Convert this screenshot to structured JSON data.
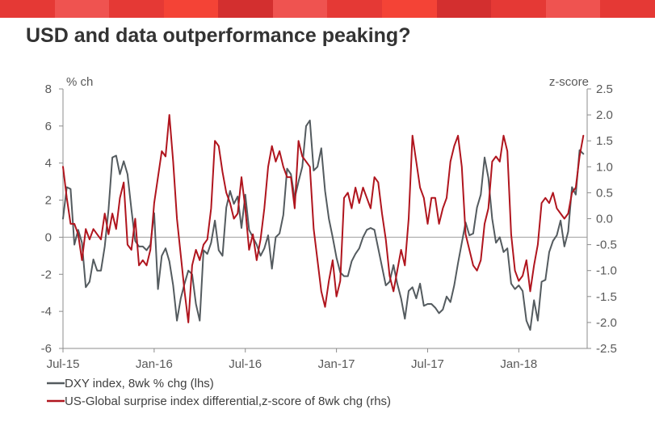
{
  "header": {
    "title": "USD and data outperformance peaking?",
    "stripe_colors": [
      "#e53935",
      "#ef5350",
      "#e53935",
      "#f44336",
      "#d32f2f",
      "#ef5350",
      "#e53935",
      "#f44336",
      "#d32f2f",
      "#e53935",
      "#ef5350",
      "#e53935"
    ]
  },
  "chart_data": {
    "type": "line",
    "title": "USD and data outperformance peaking?",
    "y_left": {
      "unit": "% ch",
      "range": [
        -6,
        8
      ],
      "ticks": [
        "8",
        "6",
        "4",
        "2",
        "0",
        "-2",
        "-4",
        "-6"
      ]
    },
    "y_right": {
      "unit": "z-score",
      "range": [
        -2.5,
        2.5
      ],
      "ticks": [
        "2.5",
        "2.0",
        "1.5",
        "1.0",
        "0.5",
        "0.0",
        "-0.5",
        "-1.0",
        "-1.5",
        "-2.0",
        "-2.5"
      ]
    },
    "x_axis": {
      "range_months": [
        0,
        34.5
      ],
      "tick_labels": [
        "Jul-15",
        "Jan-16",
        "Jul-16",
        "Jan-17",
        "Jul-17",
        "Jan-18"
      ],
      "tick_months": [
        0,
        6,
        12,
        18,
        24,
        30
      ]
    },
    "colors": {
      "dxy": "#545b5f",
      "surprise": "#b0151e",
      "zero_line": "#9e9e9e"
    },
    "series": [
      {
        "name": "DXY index, 8wk % chg (lhs)",
        "axis": "left",
        "x": [
          0,
          0.25,
          0.5,
          0.75,
          1.0,
          1.25,
          1.5,
          1.75,
          2.0,
          2.25,
          2.5,
          2.75,
          3.0,
          3.25,
          3.5,
          3.75,
          4.0,
          4.25,
          4.5,
          4.75,
          5.0,
          5.25,
          5.5,
          5.75,
          6.0,
          6.25,
          6.5,
          6.75,
          7.0,
          7.25,
          7.5,
          7.75,
          8.0,
          8.25,
          8.5,
          8.75,
          9.0,
          9.25,
          9.5,
          9.75,
          10.0,
          10.25,
          10.5,
          10.75,
          11.0,
          11.25,
          11.5,
          11.75,
          12.0,
          12.25,
          12.5,
          12.75,
          13.0,
          13.25,
          13.5,
          13.75,
          14.0,
          14.25,
          14.5,
          14.75,
          15.0,
          15.25,
          15.5,
          15.75,
          16.0,
          16.25,
          16.5,
          16.75,
          17.0,
          17.25,
          17.5,
          17.75,
          18.0,
          18.25,
          18.5,
          18.75,
          19.0,
          19.25,
          19.5,
          19.75,
          20.0,
          20.25,
          20.5,
          20.75,
          21.0,
          21.25,
          21.5,
          21.75,
          22.0,
          22.25,
          22.5,
          22.75,
          23.0,
          23.25,
          23.5,
          23.75,
          24.0,
          24.25,
          24.5,
          24.75,
          25.0,
          25.25,
          25.5,
          25.75,
          26.0,
          26.25,
          26.5,
          26.75,
          27.0,
          27.25,
          27.5,
          27.75,
          28.0,
          28.25,
          28.5,
          28.75,
          29.0,
          29.25,
          29.5,
          29.75,
          30.0,
          30.25,
          30.5,
          30.75,
          31.0,
          31.25,
          31.5,
          31.75,
          32.0,
          32.25,
          32.5,
          32.75,
          33.0,
          33.25,
          33.5,
          33.75,
          34.0,
          34.25
        ],
        "values": [
          1.0,
          2.7,
          2.6,
          -0.4,
          0.4,
          -0.3,
          -2.7,
          -2.4,
          -1.2,
          -1.8,
          -1.8,
          -0.5,
          1.5,
          4.3,
          4.4,
          3.4,
          4.1,
          3.4,
          1.5,
          -0.2,
          -0.5,
          -0.5,
          -0.7,
          -0.4,
          1.3,
          -2.8,
          -1.0,
          -0.6,
          -1.3,
          -2.6,
          -4.5,
          -3.3,
          -2.5,
          -1.8,
          -2.0,
          -3.6,
          -4.5,
          -0.7,
          -0.9,
          -0.3,
          0.9,
          -0.7,
          -1.0,
          1.6,
          2.5,
          1.8,
          2.2,
          0.5,
          2.3,
          0.4,
          0.0,
          -0.4,
          -1.0,
          -0.6,
          0.1,
          -1.7,
          0.0,
          0.2,
          1.2,
          3.7,
          3.4,
          2.1,
          3.0,
          3.8,
          6.0,
          6.3,
          3.6,
          3.8,
          4.8,
          2.5,
          1.0,
          0.0,
          -1.1,
          -1.9,
          -2.1,
          -2.1,
          -1.3,
          -0.9,
          -0.6,
          0.0,
          0.4,
          0.5,
          0.4,
          -0.6,
          -1.6,
          -2.6,
          -2.4,
          -1.5,
          -2.5,
          -3.3,
          -4.4,
          -2.9,
          -2.7,
          -3.3,
          -2.5,
          -3.7,
          -3.6,
          -3.6,
          -3.8,
          -4.1,
          -3.9,
          -3.2,
          -3.5,
          -2.6,
          -1.4,
          -0.3,
          0.8,
          0.1,
          0.2,
          1.6,
          2.3,
          4.3,
          3.2,
          1.0,
          -0.3,
          0.0,
          -0.8,
          -0.6,
          -2.5,
          -2.8,
          -2.6,
          -2.9,
          -4.5,
          -5.0,
          -3.4,
          -4.5,
          -2.4,
          -2.3,
          -0.8,
          -0.2,
          0.1,
          0.9,
          -0.5,
          0.3,
          2.7,
          2.3,
          4.7,
          4.5
        ]
      },
      {
        "name": "US-Global surprise index differential,z-score of 8wk chg (rhs)",
        "axis": "right",
        "x": [
          0,
          0.25,
          0.5,
          0.75,
          1.0,
          1.25,
          1.5,
          1.75,
          2.0,
          2.25,
          2.5,
          2.75,
          3.0,
          3.25,
          3.5,
          3.75,
          4.0,
          4.25,
          4.5,
          4.75,
          5.0,
          5.25,
          5.5,
          5.75,
          6.0,
          6.25,
          6.5,
          6.75,
          7.0,
          7.25,
          7.5,
          7.75,
          8.0,
          8.25,
          8.5,
          8.75,
          9.0,
          9.25,
          9.5,
          9.75,
          10.0,
          10.25,
          10.5,
          10.75,
          11.0,
          11.25,
          11.5,
          11.75,
          12.0,
          12.25,
          12.5,
          12.75,
          13.0,
          13.25,
          13.5,
          13.75,
          14.0,
          14.25,
          14.5,
          14.75,
          15.0,
          15.25,
          15.5,
          15.75,
          16.0,
          16.25,
          16.5,
          16.75,
          17.0,
          17.25,
          17.5,
          17.75,
          18.0,
          18.25,
          18.5,
          18.75,
          19.0,
          19.25,
          19.5,
          19.75,
          20.0,
          20.25,
          20.5,
          20.75,
          21.0,
          21.25,
          21.5,
          21.75,
          22.0,
          22.25,
          22.5,
          22.75,
          23.0,
          23.25,
          23.5,
          23.75,
          24.0,
          24.25,
          24.5,
          24.75,
          25.0,
          25.25,
          25.5,
          25.75,
          26.0,
          26.25,
          26.5,
          26.75,
          27.0,
          27.25,
          27.5,
          27.75,
          28.0,
          28.25,
          28.5,
          28.75,
          29.0,
          29.25,
          29.5,
          29.75,
          30.0,
          30.25,
          30.5,
          30.75,
          31.0,
          31.25,
          31.5,
          31.75,
          32.0,
          32.25,
          32.5,
          32.75,
          33.0,
          33.25,
          33.5,
          33.75,
          34.0,
          34.25
        ],
        "values": [
          1.0,
          0.4,
          -0.1,
          -0.1,
          -0.3,
          -0.8,
          -0.2,
          -0.4,
          -0.2,
          -0.3,
          -0.4,
          0.1,
          -0.3,
          0.1,
          -0.2,
          0.4,
          0.7,
          -0.5,
          -0.6,
          0.0,
          -0.9,
          -0.8,
          -0.9,
          -0.6,
          0.3,
          0.8,
          1.3,
          1.2,
          2.0,
          1.1,
          0.0,
          -0.7,
          -1.4,
          -2.0,
          -0.9,
          -0.6,
          -0.8,
          -0.5,
          -0.4,
          0.2,
          1.5,
          1.4,
          0.9,
          0.5,
          0.3,
          0.0,
          0.1,
          0.8,
          0.2,
          -0.6,
          -0.3,
          -0.8,
          -0.4,
          0.2,
          1.0,
          1.4,
          1.1,
          1.3,
          1.0,
          0.8,
          0.8,
          0.2,
          1.5,
          1.2,
          1.1,
          1.0,
          -0.2,
          -0.8,
          -1.4,
          -1.7,
          -1.2,
          -0.8,
          -1.5,
          -1.2,
          0.4,
          0.5,
          0.2,
          0.6,
          0.3,
          0.6,
          0.4,
          0.2,
          0.8,
          0.7,
          0.1,
          -0.4,
          -1.1,
          -1.4,
          -1.0,
          -0.6,
          -0.9,
          0.0,
          1.6,
          1.1,
          0.6,
          0.4,
          -0.1,
          0.4,
          0.4,
          -0.1,
          0.2,
          0.4,
          1.1,
          1.4,
          1.6,
          1.0,
          -0.3,
          -0.6,
          -0.9,
          -1.0,
          -0.8,
          -0.1,
          0.2,
          1.1,
          1.2,
          1.1,
          1.6,
          1.3,
          -0.3,
          -1.0,
          -1.2,
          -1.1,
          -0.8,
          -1.4,
          -0.9,
          -0.5,
          0.3,
          0.4,
          0.3,
          0.5,
          0.2,
          0.1,
          0.0,
          0.1,
          0.5,
          0.6,
          1.2,
          1.6
        ]
      }
    ],
    "legend": [
      {
        "label": "DXY index, 8wk % chg (lhs)",
        "color": "#545b5f"
      },
      {
        "label": "US-Global surprise index differential,z-score of 8wk chg (rhs)",
        "color": "#b0151e"
      }
    ],
    "legend_position": "bottom-left",
    "grid": false
  }
}
